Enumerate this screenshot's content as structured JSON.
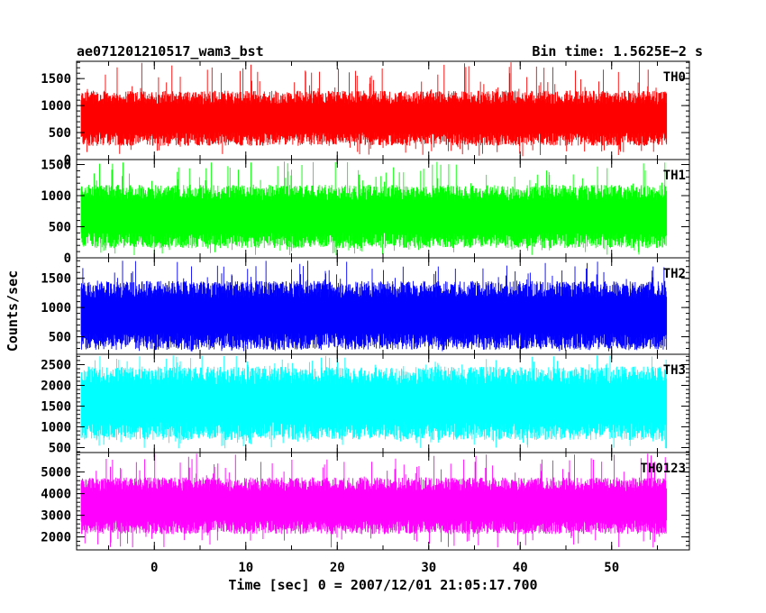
{
  "chart_data": {
    "type": "line",
    "title": "ae071201210517_wam3_bst",
    "subtitle": "Bin time: 1.5625E−2 s",
    "xlabel": "Time [sec] 0 = 2007/12/01 21:05:17.700",
    "ylabel": "Counts/sec",
    "xlim": [
      -8.5,
      58.5
    ],
    "x_data_range": [
      -8,
      56
    ],
    "x_ticks": [
      "0",
      "10",
      "20",
      "30",
      "40",
      "50"
    ],
    "x_tick_values": [
      0,
      10,
      20,
      30,
      40,
      50
    ],
    "grid": false,
    "panels": [
      {
        "name": "TH0",
        "color": "#ff0000",
        "ylim": [
          0,
          1820
        ],
        "y_ticks": [
          "0",
          "500",
          "1000",
          "1500"
        ],
        "y_tick_values": [
          0,
          500,
          1000,
          1500
        ],
        "typical_low": 380,
        "typical_high": 1100,
        "min": 60,
        "max": 1820
      },
      {
        "name": "TH1",
        "color": "#00ff00",
        "ylim": [
          0,
          1580
        ],
        "y_ticks": [
          "0",
          "500",
          "1000",
          "1500"
        ],
        "y_tick_values": [
          0,
          500,
          1000,
          1500
        ],
        "typical_low": 280,
        "typical_high": 1000,
        "min": 40,
        "max": 1550
      },
      {
        "name": "TH2",
        "color": "#0000ff",
        "ylim": [
          200,
          1850
        ],
        "y_ticks": [
          "500",
          "1000",
          "1500"
        ],
        "y_tick_values": [
          500,
          1000,
          1500
        ],
        "typical_low": 420,
        "typical_high": 1250,
        "min": 250,
        "max": 1800
      },
      {
        "name": "TH3",
        "color": "#00ffff",
        "ylim": [
          380,
          2750
        ],
        "y_ticks": [
          "500",
          "1000",
          "1500",
          "2000",
          "2500"
        ],
        "y_tick_values": [
          500,
          1000,
          1500,
          2000,
          2500
        ],
        "typical_low": 900,
        "typical_high": 2150,
        "min": 480,
        "max": 2720
      },
      {
        "name": "TH0123",
        "color": "#ff00ff",
        "ylim": [
          1400,
          5900
        ],
        "y_ticks": [
          "2000",
          "3000",
          "4000",
          "5000"
        ],
        "y_tick_values": [
          2000,
          3000,
          4000,
          5000
        ],
        "typical_low": 2450,
        "typical_high": 4300,
        "min": 1500,
        "max": 5850
      }
    ]
  }
}
